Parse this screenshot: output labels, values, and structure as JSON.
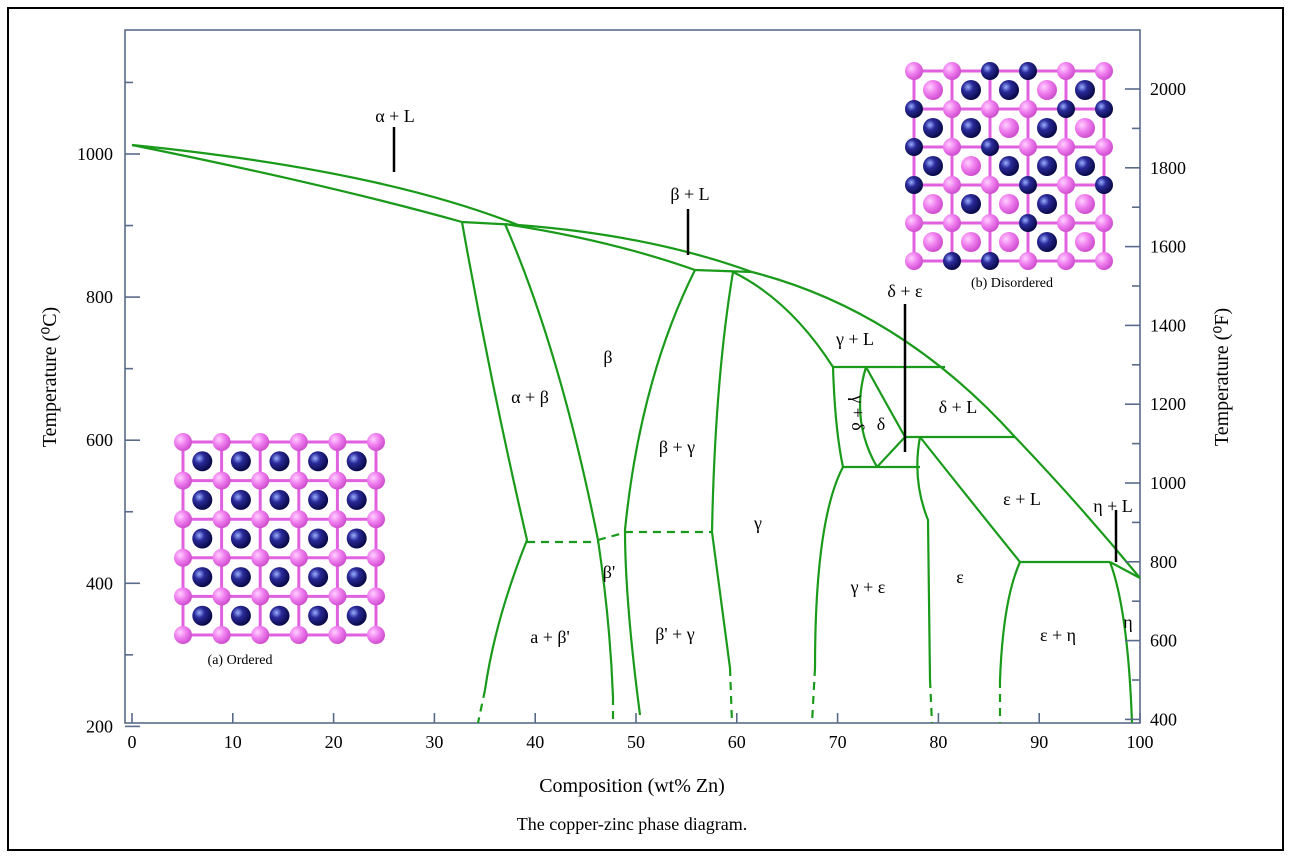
{
  "axes": {
    "x_label": "Composition (wt% Zn)",
    "y_label": "Temperature (⁰C)",
    "y2_label": "Temperature (⁰F)",
    "x_ticks": [
      0,
      10,
      20,
      30,
      40,
      50,
      60,
      70,
      80,
      90,
      100
    ],
    "y_ticks": [
      200,
      400,
      600,
      800,
      1000
    ],
    "y2_ticks": [
      400,
      600,
      800,
      1000,
      1200,
      1400,
      1600,
      1800,
      2000
    ]
  },
  "phase_labels": [
    "α + L",
    "β + L",
    "δ + ε",
    "γ + L",
    "β",
    "α + β",
    "β + γ",
    "γ + δ",
    "δ",
    "δ + L",
    "γ",
    "ε + L",
    "η + L",
    "β'",
    "a + β'",
    "β' + γ",
    "γ + ε",
    "ε",
    "η",
    "ε + η"
  ],
  "insets": [
    {
      "caption": "(a) Ordered"
    },
    {
      "caption": "(b) Disordered"
    }
  ],
  "caption": "The copper-zinc phase diagram."
}
